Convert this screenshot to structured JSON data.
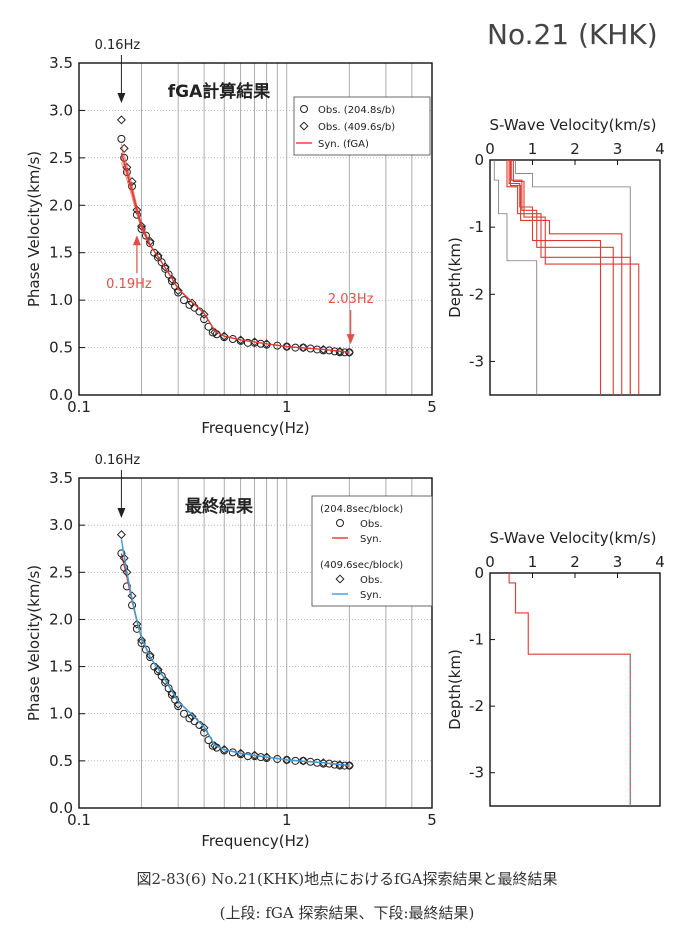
{
  "header": {
    "site_label": "No.21 (KHK)"
  },
  "caption": {
    "line1": "図2-83(6) No.21(KHK)地点におけるfGA探索結果と最終結果",
    "line2": "(上段: fGA 探索結果、下段:最終結果)"
  },
  "colors": {
    "obs": "#222222",
    "syn": "#e03a30",
    "syn409": "#3aa0d8",
    "grid": "#999999",
    "annot": "#e05048"
  },
  "chart_data": [
    {
      "id": "top_dispersion",
      "type": "scatter",
      "title": "fGA計算結果",
      "xlabel": "Frequency(Hz)",
      "ylabel": "Phase Velocity(km/s)",
      "xscale": "log",
      "xlim": [
        0.1,
        5
      ],
      "ylim": [
        0,
        3.5
      ],
      "xticks": [
        "0.1",
        "1",
        "5"
      ],
      "yticks": [
        "0.0",
        "0.5",
        "1.0",
        "1.5",
        "2.0",
        "2.5",
        "3.0",
        "3.5"
      ],
      "legend_position": "top-right",
      "legend": [
        "Obs. (204.8s/b)",
        "Obs. (409.6s/b)",
        "Syn. (fGA)"
      ],
      "annotations": [
        {
          "text": "0.16Hz",
          "x": 0.16,
          "style": "black-arrow"
        },
        {
          "text": "0.19Hz",
          "x": 0.19,
          "style": "red-arrow"
        },
        {
          "text": "2.03Hz",
          "x": 2.03,
          "style": "red-arrow"
        }
      ],
      "series": [
        {
          "name": "Obs. (204.8s/b)",
          "marker": "circle",
          "x": [
            0.16,
            0.165,
            0.17,
            0.18,
            0.19,
            0.2,
            0.21,
            0.22,
            0.23,
            0.24,
            0.25,
            0.26,
            0.27,
            0.28,
            0.29,
            0.3,
            0.32,
            0.34,
            0.36,
            0.38,
            0.4,
            0.42,
            0.44,
            0.46,
            0.5,
            0.55,
            0.6,
            0.65,
            0.7,
            0.75,
            0.8,
            0.9,
            1.0,
            1.1,
            1.2,
            1.3,
            1.4,
            1.5,
            1.6,
            1.7,
            1.8,
            1.9,
            2.0
          ],
          "y": [
            2.7,
            2.5,
            2.35,
            2.2,
            1.9,
            1.75,
            1.68,
            1.6,
            1.5,
            1.45,
            1.4,
            1.33,
            1.27,
            1.2,
            1.15,
            1.08,
            1.0,
            0.95,
            0.92,
            0.88,
            0.8,
            0.72,
            0.66,
            0.64,
            0.61,
            0.59,
            0.57,
            0.55,
            0.55,
            0.54,
            0.53,
            0.52,
            0.51,
            0.5,
            0.5,
            0.49,
            0.48,
            0.47,
            0.47,
            0.46,
            0.45,
            0.45,
            0.45
          ]
        },
        {
          "name": "Obs. (409.6s/b)",
          "marker": "diamond",
          "x": [
            0.16,
            0.165,
            0.17,
            0.18,
            0.19,
            0.2,
            0.22,
            0.24,
            0.26,
            0.28,
            0.3,
            0.35,
            0.4,
            0.45,
            0.5,
            0.6,
            0.7,
            0.8,
            1.0,
            1.2,
            1.5,
            1.8,
            2.0
          ],
          "y": [
            2.9,
            2.6,
            2.4,
            2.25,
            1.95,
            1.78,
            1.62,
            1.47,
            1.35,
            1.22,
            1.1,
            0.97,
            0.85,
            0.66,
            0.62,
            0.58,
            0.56,
            0.54,
            0.51,
            0.5,
            0.48,
            0.46,
            0.45
          ]
        },
        {
          "name": "Syn. (fGA)",
          "marker": "line",
          "x": [
            0.16,
            0.17,
            0.18,
            0.19,
            0.2,
            0.22,
            0.25,
            0.28,
            0.3,
            0.35,
            0.4,
            0.45,
            0.5,
            0.6,
            0.8,
            1.0,
            1.5,
            2.0
          ],
          "y": [
            2.55,
            2.35,
            2.15,
            1.95,
            1.78,
            1.58,
            1.4,
            1.23,
            1.12,
            0.98,
            0.86,
            0.68,
            0.62,
            0.58,
            0.54,
            0.51,
            0.48,
            0.45
          ]
        }
      ]
    },
    {
      "id": "top_velocity",
      "type": "line",
      "title": "S-Wave Velocity(km/s)",
      "ylabel": "Depth(km)",
      "xlim": [
        0,
        4
      ],
      "ylim": [
        -3.5,
        0
      ],
      "xticks": [
        "0",
        "1",
        "2",
        "3",
        "4"
      ],
      "yticks": [
        "0",
        "-1",
        "-2",
        "-3"
      ],
      "series": [
        {
          "name": "bound-left",
          "color": "gray",
          "steps": [
            [
              0.1,
              0
            ],
            [
              0.1,
              -0.3
            ],
            [
              0.2,
              -0.3
            ],
            [
              0.2,
              -0.8
            ],
            [
              0.4,
              -0.8
            ],
            [
              0.4,
              -1.5
            ],
            [
              1.1,
              -1.5
            ],
            [
              1.1,
              -3.5
            ]
          ]
        },
        {
          "name": "bound-right",
          "color": "gray",
          "steps": [
            [
              0.6,
              0
            ],
            [
              0.6,
              -0.2
            ],
            [
              1.0,
              -0.2
            ],
            [
              1.0,
              -0.4
            ],
            [
              3.3,
              -0.4
            ],
            [
              3.3,
              -3.5
            ]
          ]
        },
        {
          "name": "model-1",
          "color": "red",
          "steps": [
            [
              0.45,
              0
            ],
            [
              0.45,
              -0.35
            ],
            [
              0.7,
              -0.35
            ],
            [
              0.7,
              -0.7
            ],
            [
              1.0,
              -0.7
            ],
            [
              1.0,
              -1.2
            ],
            [
              2.6,
              -1.2
            ],
            [
              2.6,
              -3.5
            ]
          ]
        },
        {
          "name": "model-2",
          "color": "red",
          "steps": [
            [
              0.5,
              0
            ],
            [
              0.5,
              -0.3
            ],
            [
              0.75,
              -0.3
            ],
            [
              0.75,
              -0.75
            ],
            [
              1.1,
              -0.75
            ],
            [
              1.1,
              -1.3
            ],
            [
              2.9,
              -1.3
            ],
            [
              2.9,
              -3.5
            ]
          ]
        },
        {
          "name": "model-3",
          "color": "red",
          "steps": [
            [
              0.4,
              0
            ],
            [
              0.4,
              -0.4
            ],
            [
              0.65,
              -0.4
            ],
            [
              0.65,
              -0.8
            ],
            [
              1.2,
              -0.8
            ],
            [
              1.2,
              -1.45
            ],
            [
              3.3,
              -1.45
            ],
            [
              3.3,
              -3.5
            ]
          ]
        },
        {
          "name": "model-4",
          "color": "red",
          "steps": [
            [
              0.55,
              0
            ],
            [
              0.55,
              -0.32
            ],
            [
              0.8,
              -0.32
            ],
            [
              0.8,
              -0.85
            ],
            [
              1.3,
              -0.85
            ],
            [
              1.3,
              -1.55
            ],
            [
              3.5,
              -1.55
            ],
            [
              3.5,
              -3.5
            ]
          ]
        },
        {
          "name": "model-5",
          "color": "red",
          "steps": [
            [
              0.48,
              0
            ],
            [
              0.48,
              -0.38
            ],
            [
              0.72,
              -0.38
            ],
            [
              0.72,
              -0.9
            ],
            [
              1.4,
              -0.9
            ],
            [
              1.4,
              -1.1
            ],
            [
              3.1,
              -1.1
            ],
            [
              3.1,
              -3.5
            ]
          ]
        }
      ]
    },
    {
      "id": "bottom_dispersion",
      "type": "scatter",
      "title": "最終結果",
      "xlabel": "Frequency(Hz)",
      "ylabel": "Phase Velocity(km/s)",
      "xscale": "log",
      "xlim": [
        0.1,
        5
      ],
      "ylim": [
        0,
        3.5
      ],
      "xticks": [
        "0.1",
        "1",
        "5"
      ],
      "yticks": [
        "0.0",
        "0.5",
        "1.0",
        "1.5",
        "2.0",
        "2.5",
        "3.0",
        "3.5"
      ],
      "legend_position": "top-right",
      "legend_groups": [
        {
          "header": "(204.8sec/block)",
          "items": [
            "Obs.",
            "Syn."
          ]
        },
        {
          "header": "(409.6sec/block)",
          "items": [
            "Obs.",
            "Syn."
          ]
        }
      ],
      "annotations": [
        {
          "text": "0.16Hz",
          "x": 0.16,
          "style": "black-arrow"
        }
      ],
      "series": [
        {
          "name": "Obs.",
          "group": "204.8",
          "marker": "circle",
          "x": [
            0.16,
            0.165,
            0.17,
            0.18,
            0.19,
            0.2,
            0.21,
            0.22,
            0.23,
            0.24,
            0.25,
            0.26,
            0.27,
            0.28,
            0.29,
            0.3,
            0.32,
            0.34,
            0.36,
            0.38,
            0.4,
            0.42,
            0.44,
            0.46,
            0.5,
            0.55,
            0.6,
            0.65,
            0.7,
            0.75,
            0.8,
            0.9,
            1.0,
            1.1,
            1.2,
            1.3,
            1.4,
            1.5,
            1.6,
            1.7,
            1.8,
            1.9,
            2.0
          ],
          "y": [
            2.7,
            2.55,
            2.35,
            2.15,
            1.9,
            1.75,
            1.68,
            1.6,
            1.5,
            1.45,
            1.4,
            1.33,
            1.27,
            1.2,
            1.15,
            1.08,
            1.0,
            0.95,
            0.92,
            0.88,
            0.8,
            0.72,
            0.66,
            0.64,
            0.61,
            0.59,
            0.57,
            0.55,
            0.55,
            0.54,
            0.53,
            0.52,
            0.51,
            0.5,
            0.5,
            0.49,
            0.48,
            0.47,
            0.47,
            0.46,
            0.45,
            0.45,
            0.45
          ]
        },
        {
          "name": "Syn.",
          "group": "204.8",
          "marker": "line",
          "x": [
            0.16,
            0.17,
            0.18,
            0.19,
            0.2,
            0.22,
            0.25,
            0.28,
            0.3,
            0.35,
            0.4,
            0.45,
            0.5,
            0.6,
            0.8,
            1.0,
            1.5,
            2.0
          ],
          "y": [
            2.7,
            2.45,
            2.2,
            1.98,
            1.8,
            1.6,
            1.42,
            1.24,
            1.13,
            0.99,
            0.86,
            0.67,
            0.62,
            0.58,
            0.54,
            0.51,
            0.48,
            0.45
          ]
        },
        {
          "name": "Obs.",
          "group": "409.6",
          "marker": "diamond",
          "x": [
            0.16,
            0.165,
            0.17,
            0.18,
            0.19,
            0.2,
            0.22,
            0.24,
            0.26,
            0.28,
            0.3,
            0.35,
            0.4,
            0.45,
            0.5,
            0.6,
            0.7,
            0.8,
            1.0,
            1.2,
            1.5,
            1.8,
            2.0
          ],
          "y": [
            2.9,
            2.65,
            2.5,
            2.25,
            1.95,
            1.78,
            1.62,
            1.47,
            1.35,
            1.22,
            1.1,
            0.97,
            0.85,
            0.66,
            0.62,
            0.58,
            0.56,
            0.54,
            0.51,
            0.5,
            0.48,
            0.46,
            0.45
          ]
        },
        {
          "name": "Syn.",
          "group": "409.6",
          "marker": "line",
          "x": [
            0.16,
            0.17,
            0.18,
            0.19,
            0.2,
            0.22,
            0.25,
            0.28,
            0.3,
            0.35,
            0.4,
            0.45,
            0.5,
            0.6,
            0.8,
            1.0,
            1.5,
            2.0
          ],
          "y": [
            2.85,
            2.5,
            2.22,
            1.99,
            1.81,
            1.6,
            1.42,
            1.24,
            1.13,
            0.99,
            0.86,
            0.67,
            0.62,
            0.58,
            0.54,
            0.51,
            0.48,
            0.45
          ]
        }
      ]
    },
    {
      "id": "bottom_velocity",
      "type": "line",
      "title": "S-Wave Velocity(km/s)",
      "ylabel": "Depth(km)",
      "xlim": [
        0,
        4
      ],
      "ylim": [
        -3.5,
        0
      ],
      "xticks": [
        "0",
        "1",
        "2",
        "3",
        "4"
      ],
      "yticks": [
        "0",
        "-1",
        "-2",
        "-3"
      ],
      "series": [
        {
          "name": "final-204.8",
          "color": "red",
          "steps": [
            [
              0.45,
              0
            ],
            [
              0.45,
              -0.15
            ],
            [
              0.6,
              -0.15
            ],
            [
              0.6,
              -0.6
            ],
            [
              0.9,
              -0.6
            ],
            [
              0.9,
              -1.22
            ],
            [
              3.3,
              -1.22
            ],
            [
              3.3,
              -3.5
            ]
          ]
        },
        {
          "name": "final-409.6",
          "color": "blue",
          "dashed": true,
          "steps": [
            [
              3.3,
              -1.22
            ],
            [
              3.3,
              -3.5
            ]
          ]
        }
      ]
    }
  ]
}
